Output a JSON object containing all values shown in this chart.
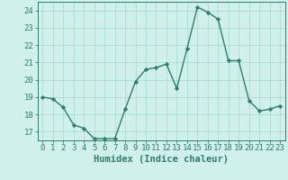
{
  "x": [
    0,
    1,
    2,
    3,
    4,
    5,
    6,
    7,
    8,
    9,
    10,
    11,
    12,
    13,
    14,
    15,
    16,
    17,
    18,
    19,
    20,
    21,
    22,
    23
  ],
  "y": [
    19.0,
    18.9,
    18.4,
    17.4,
    17.2,
    16.6,
    16.6,
    16.6,
    18.3,
    19.9,
    20.6,
    20.7,
    20.9,
    19.5,
    21.8,
    24.2,
    23.9,
    23.5,
    21.1,
    21.1,
    18.8,
    18.2,
    18.3,
    18.5
  ],
  "xlabel": "Humidex (Indice chaleur)",
  "ylim": [
    16.5,
    24.5
  ],
  "xlim": [
    -0.5,
    23.5
  ],
  "yticks": [
    17,
    18,
    19,
    20,
    21,
    22,
    23,
    24
  ],
  "xticks": [
    0,
    1,
    2,
    3,
    4,
    5,
    6,
    7,
    8,
    9,
    10,
    11,
    12,
    13,
    14,
    15,
    16,
    17,
    18,
    19,
    20,
    21,
    22,
    23
  ],
  "line_color": "#2e7d6e",
  "marker": "D",
  "marker_size": 2.2,
  "bg_color": "#cff0eb",
  "grid_color": "#aaddd7",
  "tick_label_fontsize": 6.5,
  "xlabel_fontsize": 7.5,
  "line_width": 1.0
}
